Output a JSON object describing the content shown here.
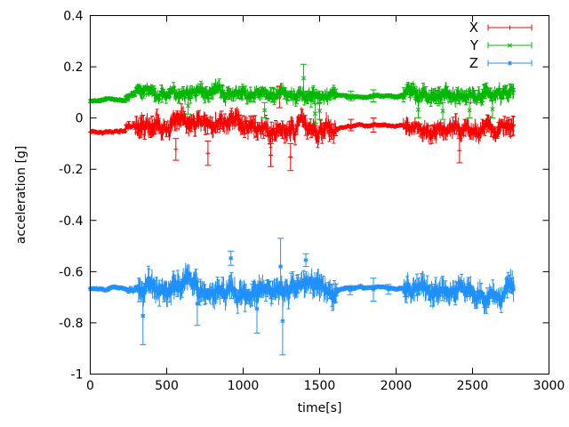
{
  "window": {
    "background": "#ffffff"
  },
  "chart_data": {
    "type": "line",
    "subtype": "errorbars-timeseries",
    "title": "",
    "xlabel": "time[s]",
    "ylabel": "acceleration [g]",
    "xlim": [
      0,
      3000
    ],
    "ylim": [
      -1,
      0.4
    ],
    "grid": false,
    "legend_position": "top-right-inside",
    "axis_color": "#000000",
    "xticks": [
      {
        "v": 0,
        "label": "0"
      },
      {
        "v": 500,
        "label": "500"
      },
      {
        "v": 1000,
        "label": "1000"
      },
      {
        "v": 1500,
        "label": "1500"
      },
      {
        "v": 2000,
        "label": "2000"
      },
      {
        "v": 2500,
        "label": "2500"
      },
      {
        "v": 3000,
        "label": "3000"
      }
    ],
    "yticks": [
      {
        "v": 0.4,
        "label": "0.4"
      },
      {
        "v": 0.2,
        "label": "0.2"
      },
      {
        "v": 0,
        "label": "0"
      },
      {
        "v": -0.2,
        "label": "-0.2"
      },
      {
        "v": -0.4,
        "label": "-0.4"
      },
      {
        "v": -0.6,
        "label": "-0.6"
      },
      {
        "v": -0.8,
        "label": "-0.8"
      },
      {
        "v": -1,
        "label": "-1"
      }
    ],
    "sample_step": 4,
    "t_end": 2770,
    "series": [
      {
        "name": "X",
        "color": "#ff0000",
        "marker": "plus",
        "segments": [
          {
            "t0": 0,
            "t1": 230,
            "base": -0.052,
            "noise": 0.004,
            "err": 0.008
          },
          {
            "t0": 230,
            "t1": 295,
            "base": -0.038,
            "noise": 0.01,
            "err": 0.02
          },
          {
            "t0": 295,
            "t1": 1610,
            "base": -0.032,
            "noise": 0.016,
            "err": 0.045
          },
          {
            "t0": 1610,
            "t1": 2045,
            "base": -0.028,
            "noise": 0.003,
            "err": 0.008
          },
          {
            "t0": 2045,
            "t1": 2775,
            "base": -0.035,
            "noise": 0.015,
            "err": 0.04
          }
        ],
        "events": [
          {
            "t": 1238,
            "lo": 0.04,
            "hi": 0.125
          },
          {
            "t": 560,
            "lo": -0.165,
            "hi": -0.08
          },
          {
            "t": 770,
            "lo": -0.185,
            "hi": -0.09
          },
          {
            "t": 1180,
            "lo": -0.19,
            "hi": -0.1
          },
          {
            "t": 1310,
            "lo": -0.205,
            "hi": -0.1
          },
          {
            "t": 1705,
            "lo": -0.05,
            "hi": -0.005
          },
          {
            "t": 1852,
            "lo": -0.055,
            "hi": 0.0
          },
          {
            "t": 2415,
            "lo": -0.175,
            "hi": -0.08
          }
        ]
      },
      {
        "name": "Y",
        "color": "#00b800",
        "marker": "cross",
        "segments": [
          {
            "t0": 0,
            "t1": 230,
            "base": 0.068,
            "noise": 0.003,
            "err": 0.007
          },
          {
            "t0": 230,
            "t1": 295,
            "base": 0.085,
            "noise": 0.008,
            "err": 0.014
          },
          {
            "t0": 295,
            "t1": 1610,
            "base": 0.09,
            "noise": 0.012,
            "err": 0.032
          },
          {
            "t0": 1610,
            "t1": 2045,
            "base": 0.086,
            "noise": 0.003,
            "err": 0.007
          },
          {
            "t0": 2045,
            "t1": 2775,
            "base": 0.085,
            "noise": 0.013,
            "err": 0.035
          }
        ],
        "events": [
          {
            "t": 1395,
            "lo": 0.1,
            "hi": 0.21
          },
          {
            "t": 640,
            "lo": 0.015,
            "hi": 0.08
          },
          {
            "t": 1140,
            "lo": 0.0,
            "hi": 0.06
          },
          {
            "t": 1470,
            "lo": -0.02,
            "hi": 0.055
          },
          {
            "t": 1500,
            "lo": -0.005,
            "hi": 0.06
          },
          {
            "t": 1705,
            "lo": 0.068,
            "hi": 0.105
          },
          {
            "t": 1852,
            "lo": 0.063,
            "hi": 0.11
          },
          {
            "t": 2145,
            "lo": 0.0,
            "hi": 0.065
          },
          {
            "t": 2305,
            "lo": -0.005,
            "hi": 0.06
          },
          {
            "t": 2480,
            "lo": 0.0,
            "hi": 0.06
          },
          {
            "t": 2630,
            "lo": 0.0,
            "hi": 0.07
          }
        ]
      },
      {
        "name": "Z",
        "color": "#1e90ff",
        "marker": "asterisk",
        "segments": [
          {
            "t0": 0,
            "t1": 245,
            "base": -0.668,
            "noise": 0.003,
            "err": 0.006
          },
          {
            "t0": 245,
            "t1": 315,
            "base": -0.665,
            "noise": 0.008,
            "err": 0.015
          },
          {
            "t0": 315,
            "t1": 1615,
            "base": -0.665,
            "noise": 0.018,
            "err": 0.055
          },
          {
            "t0": 1615,
            "t1": 2050,
            "base": -0.663,
            "noise": 0.003,
            "err": 0.007
          },
          {
            "t0": 2050,
            "t1": 2775,
            "base": -0.668,
            "noise": 0.016,
            "err": 0.05
          }
        ],
        "events": [
          {
            "t": 345,
            "lo": -0.885,
            "hi": -0.66
          },
          {
            "t": 700,
            "lo": -0.81,
            "hi": -0.64
          },
          {
            "t": 920,
            "lo": -0.575,
            "hi": -0.52
          },
          {
            "t": 1090,
            "lo": -0.84,
            "hi": -0.65
          },
          {
            "t": 1245,
            "lo": -0.69,
            "hi": -0.47
          },
          {
            "t": 1258,
            "lo": -0.925,
            "hi": -0.66
          },
          {
            "t": 1410,
            "lo": -0.58,
            "hi": -0.53
          },
          {
            "t": 1700,
            "lo": -0.69,
            "hi": -0.655
          },
          {
            "t": 1852,
            "lo": -0.715,
            "hi": -0.625
          },
          {
            "t": 1950,
            "lo": -0.688,
            "hi": -0.65
          }
        ]
      }
    ]
  }
}
